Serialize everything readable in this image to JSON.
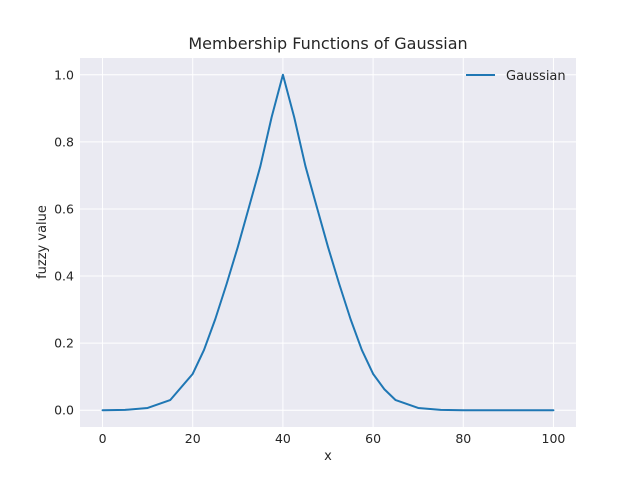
{
  "chart_data": {
    "type": "line",
    "title": "Membership Functions of Gaussian",
    "xlabel": "x",
    "ylabel": "fuzzy value",
    "xlim": [
      -5,
      105
    ],
    "ylim": [
      -0.05,
      1.05
    ],
    "x_ticks": [
      0,
      20,
      40,
      60,
      80,
      100
    ],
    "y_ticks": [
      0.0,
      0.2,
      0.4,
      0.6,
      0.8,
      1.0
    ],
    "x_tick_labels": [
      "0",
      "20",
      "40",
      "60",
      "80",
      "100"
    ],
    "y_tick_labels": [
      "0.0",
      "0.2",
      "0.4",
      "0.6",
      "0.8",
      "1.0"
    ],
    "grid": true,
    "legend_position": "top-right",
    "colors": {
      "background": "#eaeaf2",
      "grid": "#ffffff",
      "series": "#1f77b4"
    },
    "series": [
      {
        "name": "Gaussian",
        "x": [
          0,
          5,
          10,
          15,
          20,
          22.5,
          25,
          27.5,
          30,
          32.5,
          35,
          37.5,
          40,
          42.5,
          45,
          47.5,
          50,
          52.5,
          55,
          57.5,
          60,
          62.5,
          65,
          70,
          75,
          80,
          85,
          90,
          95,
          100
        ],
        "y": [
          0.0,
          0.0009,
          0.0067,
          0.0302,
          0.1084,
          0.1797,
          0.2716,
          0.3759,
          0.4868,
          0.6065,
          0.7275,
          0.8737,
          1.0,
          0.8737,
          0.7275,
          0.6065,
          0.4868,
          0.3759,
          0.2716,
          0.1797,
          0.1084,
          0.0626,
          0.0302,
          0.0067,
          0.0009,
          0.0001,
          0.0,
          0.0,
          0.0,
          0.0
        ]
      }
    ]
  }
}
